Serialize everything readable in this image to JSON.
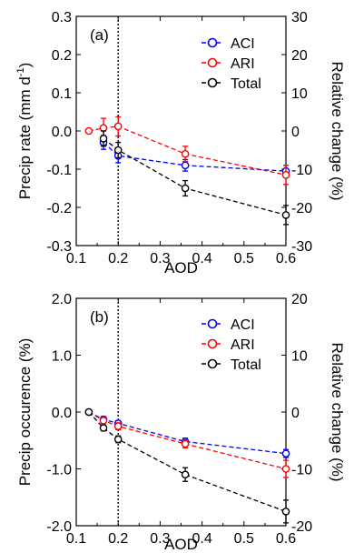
{
  "chart_data": [
    {
      "type": "line",
      "panel_label": "(a)",
      "xlabel": "AOD",
      "ylabel": "Precip rate (mm d",
      "ylabel_sup": "-1",
      "ylabel_close": ")",
      "y2label": "Relative change (%)",
      "xlim": [
        0.1,
        0.6
      ],
      "ylim": [
        -0.3,
        0.3
      ],
      "y2lim": [
        -30,
        30
      ],
      "xticks": [
        "0.1",
        "0.2",
        "0.3",
        "0.4",
        "0.5",
        "0.6"
      ],
      "yticks": [
        "-0.3",
        "-0.2",
        "-0.1",
        "0.0",
        "0.1",
        "0.2",
        "0.3"
      ],
      "y2ticks": [
        "-30",
        "-20",
        "-10",
        "0",
        "10",
        "20",
        "30"
      ],
      "vline_x": 0.2,
      "legend_position": "upper-right",
      "series": [
        {
          "name": "ACI",
          "color": "#0000ff",
          "x": [
            0.165,
            0.2,
            0.36,
            0.6
          ],
          "y": [
            -0.03,
            -0.065,
            -0.09,
            -0.105
          ],
          "err": [
            0.018,
            0.018,
            0.015,
            0.015
          ]
        },
        {
          "name": "ARI",
          "color": "#ff0000",
          "x": [
            0.13,
            0.165,
            0.2,
            0.36,
            0.6
          ],
          "y": [
            0.0,
            0.008,
            0.012,
            -0.06,
            -0.115
          ],
          "err": [
            0.0,
            0.025,
            0.025,
            0.02,
            0.025
          ]
        },
        {
          "name": "Total",
          "color": "#000000",
          "x": [
            0.165,
            0.2,
            0.36,
            0.6
          ],
          "y": [
            -0.02,
            -0.05,
            -0.15,
            -0.22
          ],
          "err": [
            0.02,
            0.02,
            0.02,
            0.025
          ]
        }
      ]
    },
    {
      "type": "line",
      "panel_label": "(b)",
      "xlabel": "AOD",
      "ylabel": "Precip occurence (%)",
      "y2label": "Relative change (%)",
      "xlim": [
        0.1,
        0.6
      ],
      "ylim": [
        -2.0,
        2.0
      ],
      "y2lim": [
        -20,
        20
      ],
      "xticks": [
        "0.1",
        "0.2",
        "0.3",
        "0.4",
        "0.5",
        "0.6"
      ],
      "yticks": [
        "-2.0",
        "-1.0",
        "0.0",
        "1.0",
        "2.0"
      ],
      "y2ticks": [
        "-20",
        "-10",
        "0",
        "10",
        "20"
      ],
      "vline_x": 0.2,
      "legend_position": "upper-right",
      "series": [
        {
          "name": "ACI",
          "color": "#0000ff",
          "x": [
            0.13,
            0.165,
            0.2,
            0.36,
            0.6
          ],
          "y": [
            0.0,
            -0.13,
            -0.2,
            -0.52,
            -0.73
          ],
          "err": [
            0.0,
            0.05,
            0.05,
            0.06,
            0.07
          ]
        },
        {
          "name": "ARI",
          "color": "#ff0000",
          "x": [
            0.13,
            0.165,
            0.2,
            0.36,
            0.6
          ],
          "y": [
            0.0,
            -0.15,
            -0.25,
            -0.56,
            -1.0
          ],
          "err": [
            0.0,
            0.05,
            0.06,
            0.07,
            0.15
          ]
        },
        {
          "name": "Total",
          "color": "#000000",
          "x": [
            0.13,
            0.165,
            0.2,
            0.36,
            0.6
          ],
          "y": [
            0.0,
            -0.28,
            -0.48,
            -1.1,
            -1.75
          ],
          "err": [
            0.0,
            0.05,
            0.06,
            0.12,
            0.2
          ]
        }
      ]
    }
  ]
}
